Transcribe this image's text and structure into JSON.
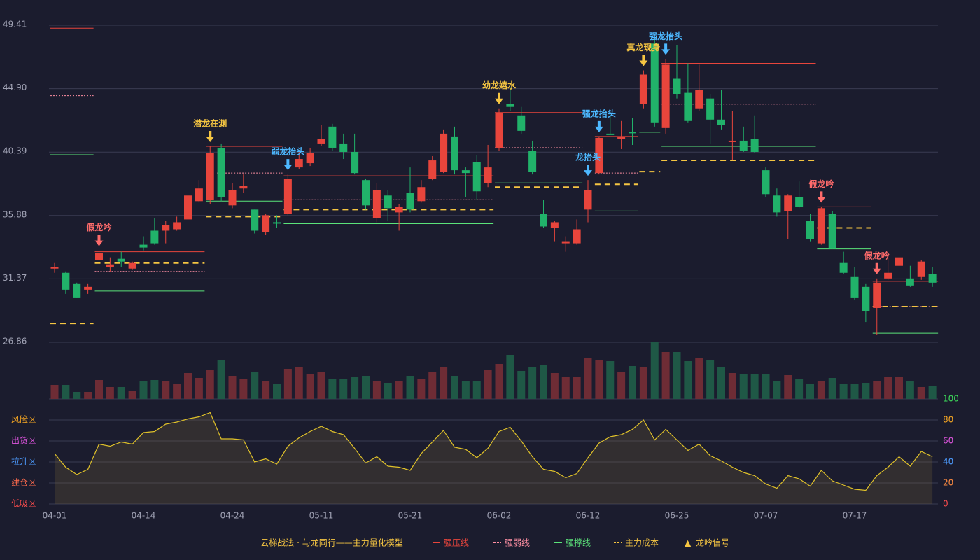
{
  "chart_data": {
    "type": "candlestick",
    "categories": [
      "04-01",
      null,
      null,
      null,
      null,
      null,
      null,
      null,
      "04-14",
      null,
      null,
      null,
      null,
      null,
      null,
      null,
      "04-24",
      null,
      null,
      null,
      null,
      null,
      null,
      null,
      "05-11",
      null,
      null,
      null,
      null,
      null,
      null,
      null,
      "05-21",
      null,
      null,
      null,
      null,
      null,
      null,
      null,
      "06-02",
      null,
      null,
      null,
      null,
      null,
      null,
      null,
      "06-12",
      null,
      null,
      null,
      null,
      null,
      null,
      null,
      "06-25",
      null,
      null,
      null,
      null,
      null,
      null,
      null,
      "07-07",
      null,
      null,
      null,
      null,
      null,
      null,
      null,
      "07-17",
      null,
      null,
      null,
      null,
      null,
      null,
      null
    ],
    "open": [
      32.1,
      31.8,
      31.0,
      30.6,
      32.7,
      32.2,
      32.8,
      32.1,
      33.8,
      34.8,
      34.8,
      34.9,
      35.6,
      36.9,
      37.0,
      40.7,
      36.6,
      37.8,
      36.3,
      34.7,
      35.4,
      36.0,
      39.3,
      39.6,
      41.0,
      42.2,
      41.0,
      40.4,
      38.4,
      35.7,
      37.3,
      36.1,
      37.5,
      36.9,
      38.5,
      39.0,
      41.5,
      39.1,
      39.7,
      38.2,
      40.7,
      43.8,
      43.0,
      40.5,
      36.0,
      35.0,
      33.9,
      33.9,
      36.3,
      38.9,
      41.7,
      41.3,
      41.8,
      43.8,
      48.1,
      42.1,
      45.6,
      44.6,
      43.5,
      44.2,
      42.7,
      41.1,
      41.2,
      41.3,
      39.1,
      37.3,
      36.2,
      37.2,
      35.5,
      33.9,
      36.0,
      32.5,
      31.5,
      30.8,
      29.3,
      31.4,
      32.3,
      31.4,
      31.5,
      31.7
    ],
    "high": [
      32.5,
      31.9,
      31.1,
      31.0,
      33.4,
      32.9,
      33.3,
      32.6,
      34.4,
      35.7,
      35.5,
      35.8,
      38.9,
      38.4,
      40.8,
      41.0,
      38.2,
      38.8,
      36.3,
      36.0,
      35.9,
      38.8,
      40.5,
      40.7,
      42.3,
      42.4,
      41.7,
      41.7,
      38.5,
      38.2,
      37.7,
      36.7,
      39.3,
      38.4,
      40.1,
      42.0,
      42.2,
      39.3,
      40.2,
      40.9,
      43.5,
      45.0,
      43.6,
      41.2,
      37.0,
      35.5,
      34.4,
      35.6,
      38.4,
      41.5,
      43.0,
      42.6,
      42.8,
      46.2,
      48.5,
      47.0,
      48.0,
      46.7,
      46.6,
      44.5,
      44.8,
      43.3,
      42.2,
      43.0,
      39.3,
      37.8,
      37.4,
      38.3,
      36.0,
      36.5,
      36.2,
      33.3,
      32.2,
      31.0,
      31.4,
      32.9,
      33.3,
      32.3,
      32.7,
      32.2
    ],
    "low": [
      31.8,
      30.3,
      30.0,
      30.3,
      32.4,
      31.9,
      32.2,
      32.0,
      33.4,
      33.8,
      33.9,
      34.8,
      35.5,
      36.8,
      36.7,
      36.9,
      36.4,
      37.5,
      34.6,
      34.5,
      35.0,
      35.9,
      39.2,
      39.4,
      40.8,
      40.5,
      39.9,
      38.8,
      36.3,
      35.4,
      35.5,
      34.8,
      36.1,
      36.8,
      38.4,
      38.9,
      38.8,
      37.2,
      37.0,
      37.9,
      40.5,
      43.3,
      41.7,
      38.8,
      35.0,
      34.0,
      33.3,
      33.8,
      35.4,
      38.8,
      41.6,
      40.6,
      40.9,
      43.5,
      42.2,
      41.7,
      44.2,
      42.5,
      43.3,
      41.0,
      42.0,
      39.8,
      40.4,
      40.3,
      37.2,
      35.8,
      34.2,
      36.4,
      34.0,
      33.8,
      33.5,
      31.7,
      29.9,
      28.3,
      27.4,
      31.3,
      32.0,
      30.8,
      31.3,
      30.8
    ],
    "close": [
      32.2,
      30.6,
      30.0,
      30.8,
      33.2,
      32.4,
      32.6,
      32.5,
      33.6,
      33.9,
      35.2,
      35.4,
      37.3,
      37.8,
      40.3,
      37.2,
      37.7,
      38.0,
      34.8,
      35.9,
      35.3,
      38.5,
      39.9,
      40.3,
      41.3,
      40.7,
      40.4,
      38.9,
      36.6,
      37.7,
      36.4,
      36.5,
      36.3,
      37.9,
      39.8,
      41.7,
      39.1,
      38.9,
      37.6,
      39.3,
      43.2,
      43.6,
      41.9,
      39.0,
      35.1,
      35.4,
      34.0,
      34.9,
      37.7,
      41.4,
      41.6,
      41.5,
      41.75,
      45.9,
      42.5,
      46.6,
      44.5,
      42.6,
      44.8,
      42.7,
      42.3,
      41.2,
      40.5,
      40.4,
      37.4,
      36.1,
      37.3,
      36.5,
      34.2,
      36.4,
      33.5,
      31.8,
      30.0,
      29.1,
      31.1,
      31.8,
      32.9,
      30.9,
      32.6,
      31.1
    ],
    "volume": [
      20,
      20,
      10,
      10,
      27,
      17,
      17,
      12,
      25,
      27,
      25,
      22,
      37,
      30,
      42,
      55,
      33,
      29,
      38,
      25,
      21,
      43,
      46,
      35,
      39,
      29,
      28,
      31,
      33,
      25,
      23,
      25,
      33,
      28,
      38,
      46,
      33,
      25,
      26,
      42,
      50,
      63,
      40,
      45,
      48,
      37,
      31,
      32,
      59,
      56,
      54,
      39,
      47,
      45,
      81,
      67,
      67,
      54,
      58,
      55,
      45,
      37,
      35,
      35,
      35,
      25,
      34,
      28,
      22,
      26,
      30,
      21,
      22,
      23,
      25,
      31,
      31,
      25,
      17,
      18
    ],
    "up_color": "#e8453c",
    "down_color": "#21b26a",
    "up_volume_color": "#6e2c35",
    "down_volume_color": "#1f5846",
    "ylim": [
      26.86,
      49.41
    ],
    "yticks": [
      26.86,
      31.37,
      35.88,
      40.39,
      {
        "value": 44.9,
        "label": "44.90"
      },
      49.41
    ],
    "grid": true,
    "lines": [
      {
        "name": "强压线",
        "color": "#e8453c",
        "style": "solid",
        "levels": [
          {
            "from": 0,
            "to": 3,
            "price": 49.2
          },
          {
            "from": 4,
            "to": 13,
            "price": 33.3
          },
          {
            "from": 14,
            "to": 20,
            "price": 40.8
          },
          {
            "from": 21,
            "to": 39,
            "price": 38.7
          },
          {
            "from": 40,
            "to": 47,
            "price": 43.2
          },
          {
            "from": 49,
            "to": 52,
            "price": 41.5
          },
          {
            "from": 55,
            "to": 68,
            "price": 46.7
          },
          {
            "from": 69,
            "to": 73,
            "price": 36.5
          },
          {
            "from": 74,
            "to": 79,
            "price": 31.2
          }
        ]
      },
      {
        "name": "强弱线",
        "color": "#ff8fa3",
        "style": "dotted",
        "levels": [
          {
            "from": 0,
            "to": 3,
            "price": 44.4
          },
          {
            "from": 4,
            "to": 13,
            "price": 31.9
          },
          {
            "from": 15,
            "to": 20,
            "price": 38.9
          },
          {
            "from": 21,
            "to": 39,
            "price": 37.0
          },
          {
            "from": 40,
            "to": 47,
            "price": 40.7
          },
          {
            "from": 49,
            "to": 52,
            "price": 38.9
          },
          {
            "from": 55,
            "to": 68,
            "price": 43.8
          },
          {
            "from": 69,
            "to": 73,
            "price": 35.0
          },
          {
            "from": 74,
            "to": 79,
            "price": 29.4
          }
        ]
      },
      {
        "name": "强撑线",
        "color": "#5be37a",
        "style": "solid",
        "levels": [
          {
            "from": 0,
            "to": 3,
            "price": 40.2
          },
          {
            "from": 4,
            "to": 13,
            "price": 30.5
          },
          {
            "from": 14,
            "to": 20,
            "price": 36.9
          },
          {
            "from": 21,
            "to": 39,
            "price": 35.3
          },
          {
            "from": 40,
            "to": 47,
            "price": 38.2
          },
          {
            "from": 49,
            "to": 52,
            "price": 36.2
          },
          {
            "from": 53,
            "to": 54,
            "price": 41.8
          },
          {
            "from": 55,
            "to": 68,
            "price": 40.8
          },
          {
            "from": 69,
            "to": 73,
            "price": 33.5
          },
          {
            "from": 74,
            "to": 79,
            "price": 27.5
          }
        ]
      },
      {
        "name": "主力成本",
        "color": "#f5c542",
        "style": "dashed",
        "levels": [
          {
            "from": 0,
            "to": 3,
            "price": 28.2
          },
          {
            "from": 4,
            "to": 13,
            "price": 32.5
          },
          {
            "from": 14,
            "to": 20,
            "price": 35.8
          },
          {
            "from": 21,
            "to": 39,
            "price": 36.3
          },
          {
            "from": 40,
            "to": 47,
            "price": 37.9
          },
          {
            "from": 49,
            "to": 52,
            "price": 38.1
          },
          {
            "from": 53,
            "to": 54,
            "price": 39.0
          },
          {
            "from": 55,
            "to": 68,
            "price": 39.8
          },
          {
            "from": 69,
            "to": 73,
            "price": 35.0
          },
          {
            "from": 74,
            "to": 79,
            "price": 29.4
          }
        ]
      }
    ],
    "signal_legend": {
      "name": "龙吟信号",
      "color": "#f5c542",
      "symbol": "▲"
    },
    "signals": [
      {
        "index": 4,
        "text": "假龙吟",
        "color": "#ff6b6b"
      },
      {
        "index": 14,
        "text": "潜龙在渊",
        "color": "#f5c542"
      },
      {
        "index": 21,
        "text": "弱龙抬头",
        "color": "#4db8ff"
      },
      {
        "index": 40,
        "text": "幼龙嬉水",
        "color": "#f5c542"
      },
      {
        "index": 48,
        "text": "龙抬头",
        "color": "#4db8ff"
      },
      {
        "index": 49,
        "text": "强龙抬头",
        "color": "#4db8ff"
      },
      {
        "index": 53,
        "text": "真龙现身",
        "color": "#f5c542"
      },
      {
        "index": 55,
        "text": "强龙抬头",
        "color": "#4db8ff"
      },
      {
        "index": 69,
        "text": "假龙吟",
        "color": "#ff6b6b"
      },
      {
        "index": 74,
        "text": "假龙吟",
        "color": "#ff6b6b"
      }
    ],
    "indicator": {
      "values": [
        48,
        35,
        28,
        33,
        57,
        55,
        59,
        57,
        68,
        69,
        76,
        78,
        81,
        83,
        87,
        62,
        62,
        61,
        40,
        43,
        38,
        55,
        63,
        69,
        74,
        69,
        66,
        53,
        39,
        45,
        36,
        35,
        32,
        48,
        59,
        70,
        54,
        52,
        44,
        53,
        69,
        73,
        60,
        45,
        33,
        31,
        25,
        29,
        44,
        58,
        64,
        66,
        71,
        80,
        61,
        71,
        61,
        51,
        57,
        46,
        41,
        35,
        30,
        27,
        19,
        15,
        27,
        24,
        17,
        32,
        22,
        18,
        14,
        13,
        27,
        35,
        45,
        36,
        50,
        45
      ],
      "color": "#e0c22a",
      "ylim": [
        0,
        100
      ],
      "yticks": [
        {
          "value": 0,
          "color": "#ff4d4d"
        },
        {
          "value": 20,
          "color": "#ff8c42"
        },
        {
          "value": 40,
          "color": "#4d9bff"
        },
        {
          "value": 60,
          "color": "#e055e0"
        },
        {
          "value": 80,
          "color": "#f5a623"
        },
        {
          "value": 100,
          "color": "#3ddc5a"
        }
      ],
      "zones": [
        {
          "label": "低吸区",
          "value": 0,
          "color": "#ff4d4d"
        },
        {
          "label": "建仓区",
          "value": 20,
          "color": "#ff6b4d"
        },
        {
          "label": "拉升区",
          "value": 40,
          "color": "#4d9bff"
        },
        {
          "label": "出货区",
          "value": 60,
          "color": "#e055e0"
        },
        {
          "label": "风险区",
          "value": 80,
          "color": "#f5a623"
        }
      ]
    },
    "legend_title": "云梯战法 · 与龙同行——主力量化模型"
  }
}
